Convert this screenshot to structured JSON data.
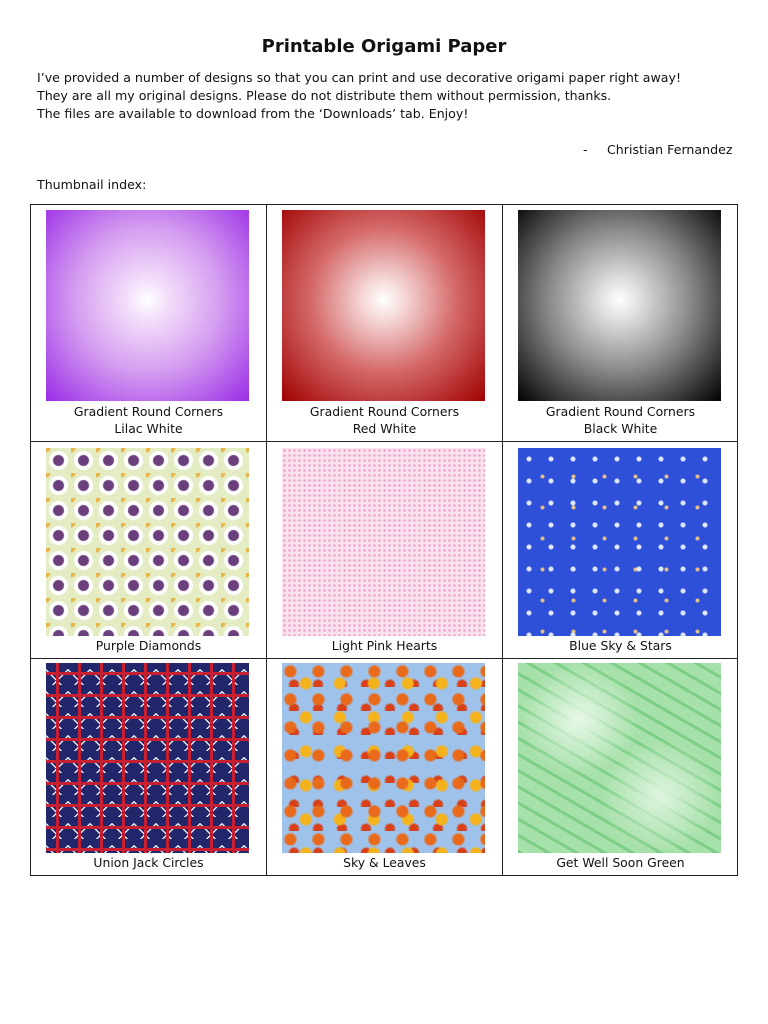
{
  "header": {
    "title": "Printable Origami Paper"
  },
  "intro": [
    "I’ve provided a number of designs so that you can print and use decorative origami paper right away!",
    "They are all my original designs. Please do not distribute them without permission, thanks.",
    "The files are available to download from the ‘Downloads’ tab. Enjoy!"
  ],
  "signature": {
    "dash": "-",
    "name": "Christian Fernandez"
  },
  "index_label": "Thumbnail index:",
  "thumbnails": [
    {
      "caption": [
        "Gradient Round Corners",
        "Lilac White"
      ]
    },
    {
      "caption": [
        "Gradient Round Corners",
        "Red White"
      ]
    },
    {
      "caption": [
        "Gradient Round Corners",
        "Black White"
      ]
    },
    {
      "caption": [
        "Purple Diamonds"
      ]
    },
    {
      "caption": [
        "Light Pink Hearts"
      ]
    },
    {
      "caption": [
        "Blue Sky & Stars"
      ]
    },
    {
      "caption": [
        "Union Jack Circles"
      ]
    },
    {
      "caption": [
        "Sky & Leaves"
      ]
    },
    {
      "caption": [
        "Get Well Soon Green"
      ]
    }
  ]
}
